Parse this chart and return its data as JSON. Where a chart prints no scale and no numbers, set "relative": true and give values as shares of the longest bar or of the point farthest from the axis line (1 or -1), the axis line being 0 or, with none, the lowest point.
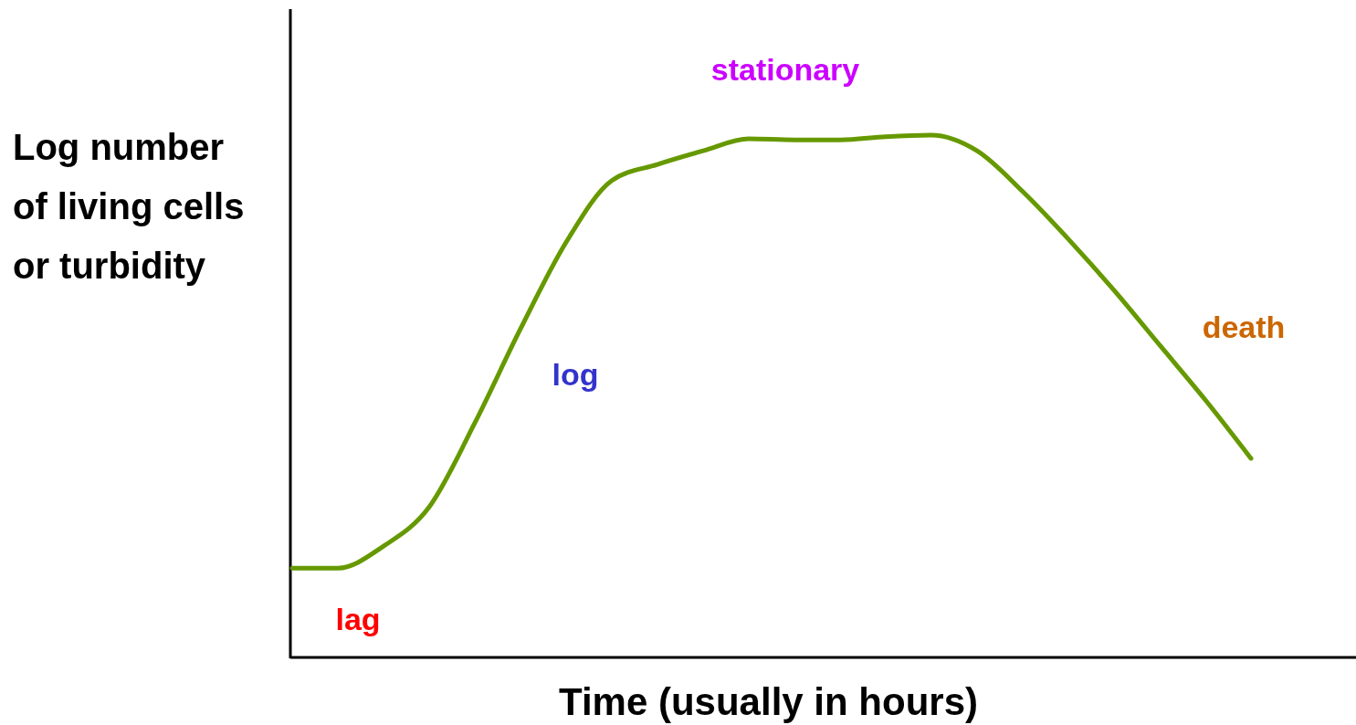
{
  "chart_data": {
    "type": "line",
    "relative": true,
    "xlabel": "Time (usually in hours)",
    "ylabel": "Log number\nof living cells\nor turbidity",
    "categories": [
      null,
      null,
      null,
      null,
      null,
      null,
      null,
      null,
      null,
      null,
      null,
      null,
      null,
      null,
      null,
      null,
      null,
      null,
      null,
      null,
      null,
      null
    ],
    "series": [
      {
        "color": "#669900",
        "values": [
          0.171,
          0.171,
          0.213,
          0.288,
          0.449,
          0.629,
          0.795,
          0.913,
          0.944,
          0.97,
          0.993,
          0.991,
          0.991,
          0.997,
          1,
          0.97,
          0.892,
          0.801,
          0.703,
          0.598,
          0.493,
          0.381
        ]
      }
    ],
    "annotations": [
      "lag",
      "log",
      "stationary",
      "death"
    ],
    "marker": "none",
    "line_style": "solid"
  }
}
